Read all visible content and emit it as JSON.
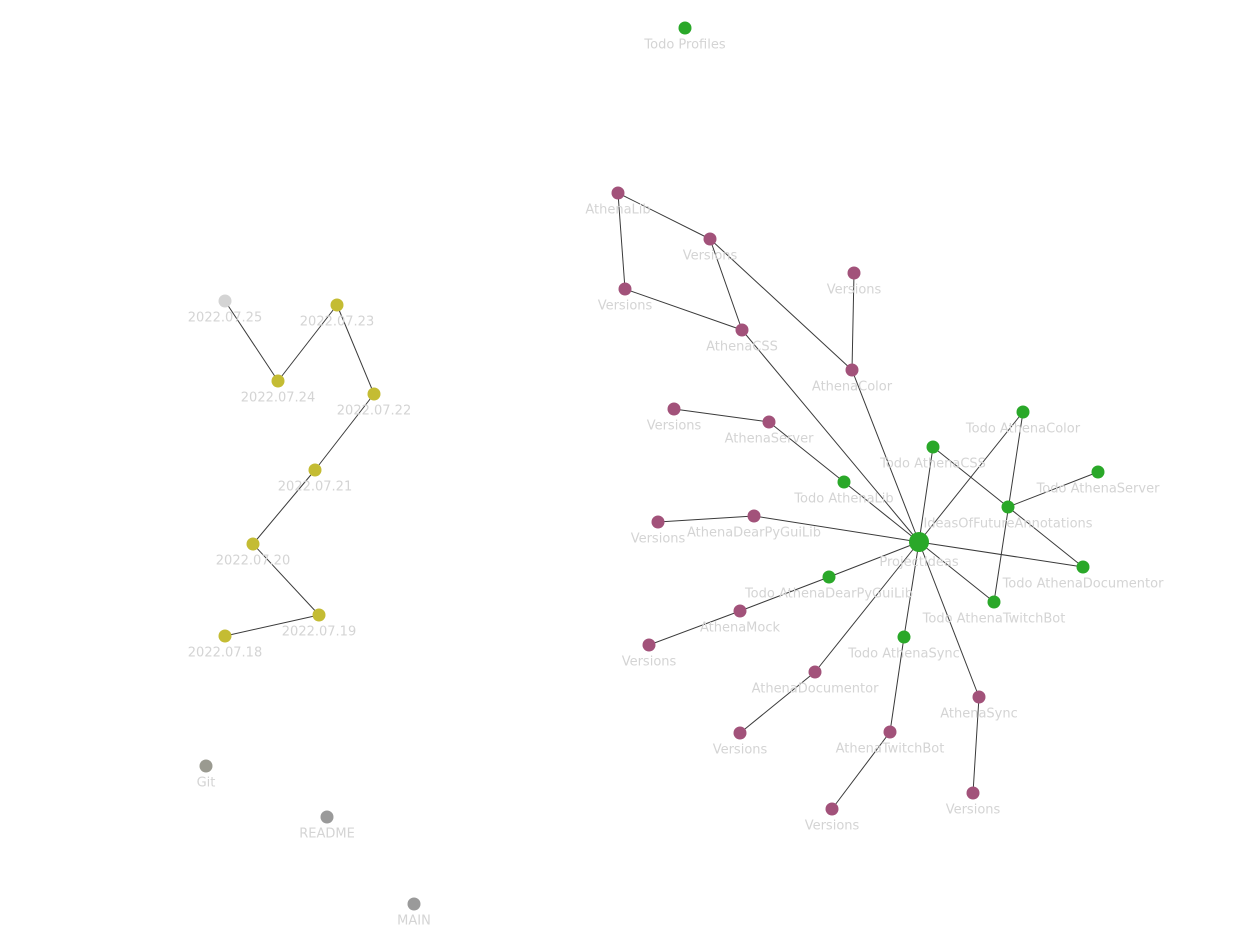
{
  "colors": {
    "project": "#2aa829",
    "note": "#a2527a",
    "daily": "#c4bc33",
    "daily_unresolved": "#d4d4d4",
    "misc": "#9a9a90",
    "misc_dark": "#9a9a9a",
    "edge": "#3a3a3a",
    "label": "#d4d4d4"
  },
  "graph": {
    "nodes": [
      {
        "id": "todo-profiles",
        "label": "Todo Profiles",
        "group": "project"
      },
      {
        "id": "athenalib",
        "label": "AthenaLib",
        "group": "note"
      },
      {
        "id": "versions-1",
        "label": "Versions",
        "group": "note"
      },
      {
        "id": "versions-2",
        "label": "Versions",
        "group": "note"
      },
      {
        "id": "versions-3",
        "label": "Versions",
        "group": "note"
      },
      {
        "id": "athenacss",
        "label": "AthenaCSS",
        "group": "note"
      },
      {
        "id": "athenacolor",
        "label": "AthenaColor",
        "group": "note"
      },
      {
        "id": "versions-4",
        "label": "Versions",
        "group": "note"
      },
      {
        "id": "athenaserver",
        "label": "AthenaServer",
        "group": "note"
      },
      {
        "id": "todo-athenalib",
        "label": "Todo AthenaLib",
        "group": "project"
      },
      {
        "id": "todo-athenacss",
        "label": "Todo AthenaCSS",
        "group": "project"
      },
      {
        "id": "todo-athenacolor",
        "label": "Todo AthenaColor",
        "group": "project"
      },
      {
        "id": "todo-athenaserver",
        "label": "Todo AthenaServer",
        "group": "project"
      },
      {
        "id": "ideas",
        "label": "IdeasOfFutureAnnotations",
        "group": "project"
      },
      {
        "id": "versions-5",
        "label": "Versions",
        "group": "note"
      },
      {
        "id": "athenadearpyguilib",
        "label": "AthenaDearPyGuiLib",
        "group": "note"
      },
      {
        "id": "projectideas",
        "label": "ProjectIdeas",
        "group": "project",
        "hub": true
      },
      {
        "id": "todo-athenadocumentor",
        "label": "Todo AthenaDocumentor",
        "group": "project"
      },
      {
        "id": "todo-athenadearpyguilib",
        "label": "Todo AthenaDearPyGuiLib",
        "group": "project"
      },
      {
        "id": "todo-athenatwitchbot",
        "label": "Todo AthenaTwitchBot",
        "group": "project"
      },
      {
        "id": "athenamock",
        "label": "AthenaMock",
        "group": "note"
      },
      {
        "id": "versions-6",
        "label": "Versions",
        "group": "note"
      },
      {
        "id": "todo-athenasync",
        "label": "Todo AthenaSync",
        "group": "project"
      },
      {
        "id": "athenadocumentor",
        "label": "AthenaDocumentor",
        "group": "note"
      },
      {
        "id": "athenasync",
        "label": "AthenaSync",
        "group": "note"
      },
      {
        "id": "versions-7",
        "label": "Versions",
        "group": "note"
      },
      {
        "id": "athenatwitchbot",
        "label": "AthenaTwitchBot",
        "group": "note"
      },
      {
        "id": "versions-8",
        "label": "Versions",
        "group": "note"
      },
      {
        "id": "versions-9",
        "label": "Versions",
        "group": "note"
      },
      {
        "id": "d-0725",
        "label": "2022.07.25",
        "group": "daily_unresolved"
      },
      {
        "id": "d-0723",
        "label": "2022.07.23",
        "group": "daily"
      },
      {
        "id": "d-0724",
        "label": "2022.07.24",
        "group": "daily"
      },
      {
        "id": "d-0722",
        "label": "2022.07.22",
        "group": "daily"
      },
      {
        "id": "d-0721",
        "label": "2022.07.21",
        "group": "daily"
      },
      {
        "id": "d-0720",
        "label": "2022.07.20",
        "group": "daily"
      },
      {
        "id": "d-0719",
        "label": "2022.07.19",
        "group": "daily"
      },
      {
        "id": "d-0718",
        "label": "2022.07.18",
        "group": "daily"
      },
      {
        "id": "git",
        "label": "Git",
        "group": "misc"
      },
      {
        "id": "readme",
        "label": "README",
        "group": "misc_dark"
      },
      {
        "id": "main",
        "label": "MAIN",
        "group": "misc_dark"
      }
    ],
    "edges": [
      [
        "athenalib",
        "versions-1"
      ],
      [
        "athenalib",
        "versions-2"
      ],
      [
        "versions-2",
        "athenacss"
      ],
      [
        "versions-1",
        "athenacss"
      ],
      [
        "versions-1",
        "athenacolor"
      ],
      [
        "versions-3",
        "athenacolor"
      ],
      [
        "athenacss",
        "projectideas"
      ],
      [
        "athenacolor",
        "projectideas"
      ],
      [
        "versions-4",
        "athenaserver"
      ],
      [
        "athenaserver",
        "todo-athenalib"
      ],
      [
        "todo-athenalib",
        "projectideas"
      ],
      [
        "versions-5",
        "athenadearpyguilib"
      ],
      [
        "athenadearpyguilib",
        "projectideas"
      ],
      [
        "todo-athenacss",
        "projectideas"
      ],
      [
        "todo-athenacss",
        "ideas"
      ],
      [
        "todo-athenacolor",
        "projectideas"
      ],
      [
        "todo-athenacolor",
        "todo-athenatwitchbot"
      ],
      [
        "todo-athenaserver",
        "ideas"
      ],
      [
        "ideas",
        "todo-athenadocumentor"
      ],
      [
        "todo-athenadocumentor",
        "projectideas"
      ],
      [
        "todo-athenatwitchbot",
        "projectideas"
      ],
      [
        "todo-athenadearpyguilib",
        "projectideas"
      ],
      [
        "athenamock",
        "todo-athenadearpyguilib"
      ],
      [
        "athenamock",
        "versions-6"
      ],
      [
        "todo-athenasync",
        "projectideas"
      ],
      [
        "athenatwitchbot",
        "todo-athenasync"
      ],
      [
        "athenadocumentor",
        "projectideas"
      ],
      [
        "athenadocumentor",
        "versions-7"
      ],
      [
        "athenasync",
        "projectideas"
      ],
      [
        "athenasync",
        "versions-9"
      ],
      [
        "athenatwitchbot",
        "versions-8"
      ],
      [
        "d-0725",
        "d-0724"
      ],
      [
        "d-0724",
        "d-0723"
      ],
      [
        "d-0723",
        "d-0722"
      ],
      [
        "d-0722",
        "d-0721"
      ],
      [
        "d-0721",
        "d-0720"
      ],
      [
        "d-0720",
        "d-0719"
      ],
      [
        "d-0719",
        "d-0718"
      ]
    ]
  }
}
